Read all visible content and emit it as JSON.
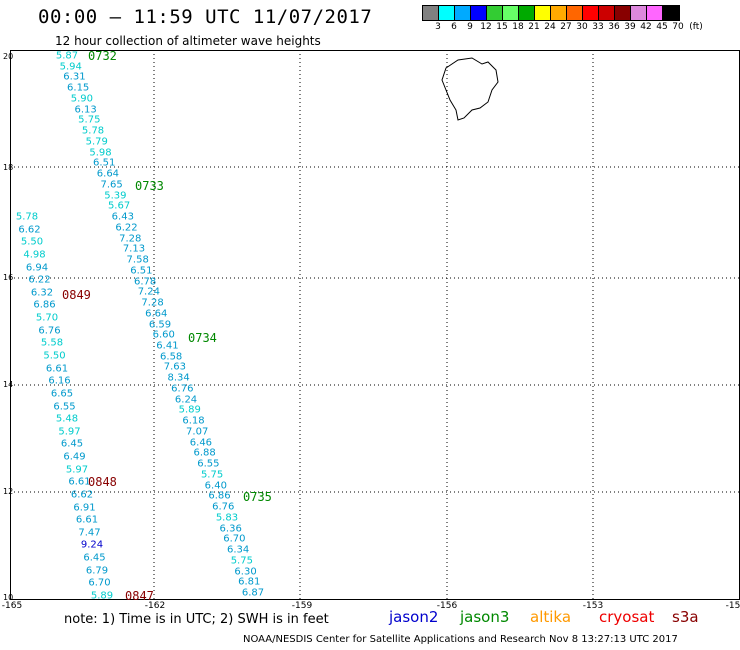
{
  "header": {
    "title": "00:00 – 11:59 UTC 11/07/2017",
    "subtitle": "12 hour collection of altimeter wave heights"
  },
  "colorbar": {
    "colors": [
      "#808080",
      "#00ffff",
      "#00aaff",
      "#0000ff",
      "#33cc33",
      "#66ff66",
      "#00aa00",
      "#ffff00",
      "#ffaa00",
      "#ff6600",
      "#ff0000",
      "#cc0000",
      "#880000",
      "#dd88dd",
      "#ff66ff",
      "#000000"
    ],
    "labels": [
      "3",
      "6",
      "9",
      "12",
      "15",
      "18",
      "21",
      "24",
      "27",
      "30",
      "33",
      "36",
      "39",
      "42",
      "45",
      "70",
      "(ft)"
    ]
  },
  "axes": {
    "lat_ticks": [
      "20",
      "18",
      "16",
      "14",
      "12",
      "10"
    ],
    "lon_ticks": [
      "-165",
      "-162",
      "-159",
      "-156",
      "-153",
      "-15"
    ]
  },
  "tracks": [
    {
      "color": "#00cccc",
      "label": "0732",
      "label_color": "#008800",
      "values": [
        "5.87",
        "5.94",
        "6.31",
        "6.15",
        "5.90",
        "6.13",
        "5.75",
        "5.78",
        "5.79",
        "5.98",
        "6.51",
        "6.64",
        "7.65",
        "5.39",
        "5.67",
        "6.43",
        "6.22",
        "7.28",
        "7.13",
        "7.58",
        "6.51",
        "6.78",
        "7.24",
        "7.28",
        "6.64",
        "6.59",
        "6.60",
        "6.41",
        "6.58",
        "7.63",
        "8.34",
        "6.76",
        "6.24",
        "5.89",
        "6.18",
        "7.07",
        "6.46",
        "6.88",
        "6.55",
        "5.75",
        "6.40",
        "6.86",
        "6.76",
        "5.83",
        "6.36",
        "6.70",
        "6.34",
        "5.75",
        "6.30",
        "6.81",
        "6.87"
      ]
    },
    {
      "color": "#00cccc",
      "label": "0849",
      "label_color": "#880000",
      "values": [
        "5.78",
        "6.62",
        "5.50",
        "4.98",
        "6.94",
        "6.22",
        "6.32",
        "6.86",
        "5.70",
        "6.76",
        "5.58",
        "5.50",
        "6.61",
        "6.16",
        "6.65",
        "6.55",
        "5.48",
        "5.97",
        "6.45",
        "6.49",
        "5.97",
        "6.61",
        "6.62",
        "6.91",
        "6.61",
        "7.47",
        "9.24",
        "6.45",
        "6.79",
        "6.70",
        "5.89"
      ]
    }
  ],
  "track_labels": [
    "0732",
    "0733",
    "0734",
    "0735",
    "0849",
    "0848",
    "0847"
  ],
  "legend": {
    "note": "note: 1) Time is in UTC; 2) SWH is in feet",
    "satellites": [
      {
        "name": "jason2",
        "color": "#0000cc"
      },
      {
        "name": "jason3",
        "color": "#008800"
      },
      {
        "name": "altika",
        "color": "#ff9900"
      },
      {
        "name": "cryosat",
        "color": "#ee0000"
      },
      {
        "name": "s3a",
        "color": "#880000"
      }
    ]
  },
  "credit": "NOAA/NESDIS Center for Satellite Applications and Research    Nov  8 13:27:13 UTC 2017"
}
